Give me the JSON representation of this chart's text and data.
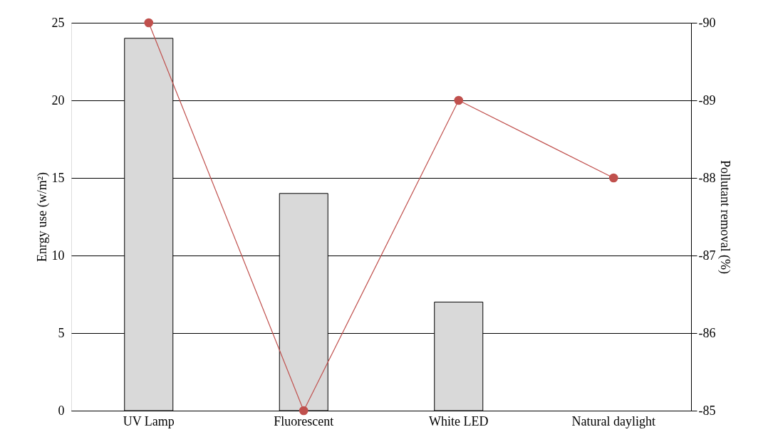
{
  "chart_data": {
    "type": "bar",
    "categories": [
      "UV Lamp",
      "Fluorescent",
      "White LED",
      "Natural daylight"
    ],
    "series": [
      {
        "color": "#d9d9d9",
        "values": [
          24,
          14,
          7,
          null
        ]
      },
      {
        "type": "line",
        "axis": "y2",
        "color": "#c0504d",
        "marker": "circle",
        "line_style": "solid",
        "values": [
          -90,
          -85,
          -89,
          -88
        ]
      }
    ],
    "ylabel": "Enrgy use (w/m²)",
    "y2label": "Pollutant removal (%)",
    "ylim": [
      0,
      25
    ],
    "yticks": [
      0,
      5,
      10,
      15,
      20,
      25
    ],
    "y2lim": [
      -85,
      -90
    ],
    "y2ticks": [
      -90,
      -89,
      -88,
      -87,
      -86,
      -85
    ],
    "grid": "y"
  }
}
